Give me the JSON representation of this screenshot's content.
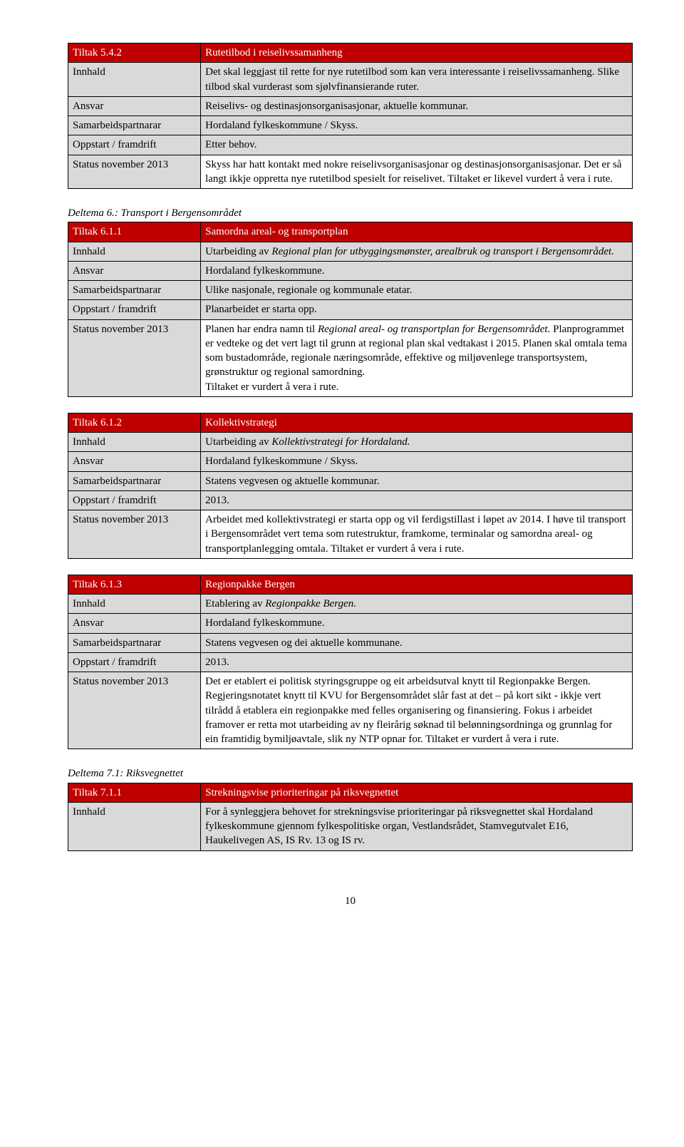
{
  "tables": [
    {
      "header": {
        "code": "Tiltak 5.4.2",
        "title": "Rutetilbod i reiselivssamanheng"
      },
      "rows": [
        {
          "label": "Innhald",
          "value": "Det skal leggjast til rette for nye rutetilbod som kan vera interessante i reiselivssamanheng. Slike tilbod skal vurderast som sjølvfinansierande ruter.",
          "status": false
        },
        {
          "label": "Ansvar",
          "value": "Reiselivs- og destinasjonsorganisasjonar, aktuelle kommunar.",
          "status": false
        },
        {
          "label": "Samarbeidspartnarar",
          "value": "Hordaland fylkeskommune / Skyss.",
          "status": false
        },
        {
          "label": "Oppstart / framdrift",
          "value": "Etter behov.",
          "status": false
        },
        {
          "label": "Status november 2013",
          "value": "Skyss har hatt kontakt med nokre reiselivsorganisasjonar og destinasjonsorganisasjonar. Det er så langt ikkje oppretta nye rutetilbod spesielt for reiselivet. Tiltaket er likevel vurdert å vera i rute.",
          "status": true
        }
      ]
    },
    {
      "sectionHeading": "Deltema 6.: Transport i Bergensområdet",
      "header": {
        "code": "Tiltak 6.1.1",
        "title": "Samordna areal- og transportplan"
      },
      "rows": [
        {
          "label": "Innhald",
          "value_html": "Utarbeiding av <em>Regional plan for utbyggingsmønster, arealbruk og transport i Bergensområdet.</em>",
          "status": false
        },
        {
          "label": "Ansvar",
          "value": "Hordaland fylkeskommune.",
          "status": false
        },
        {
          "label": "Samarbeidspartnarar",
          "value": "Ulike nasjonale, regionale og kommunale etatar.",
          "status": false
        },
        {
          "label": "Oppstart / framdrift",
          "value": "Planarbeidet er starta opp.",
          "status": false
        },
        {
          "label": "Status november 2013",
          "value_html": "Planen har endra namn til <em>Regional areal- og transportplan for Bergensområdet.</em> Planprogrammet er vedteke og det vert lagt til grunn at regional  plan skal vedtakast i 2015. Planen skal omtala tema som bustadområde, regionale næringsområde, effektive og miljøvenlege transportsystem, grønstruktur og regional samordning.<br>Tiltaket er vurdert å vera i rute.",
          "status": true
        }
      ]
    },
    {
      "header": {
        "code": "Tiltak 6.1.2",
        "title": "Kollektivstrategi"
      },
      "rows": [
        {
          "label": "Innhald",
          "value_html": "Utarbeiding av <em>Kollektivstrategi for Hordaland.</em>",
          "status": false
        },
        {
          "label": "Ansvar",
          "value": "Hordaland fylkeskommune / Skyss.",
          "status": false
        },
        {
          "label": "Samarbeidspartnarar",
          "value": "Statens vegvesen og aktuelle kommunar.",
          "status": false
        },
        {
          "label": "Oppstart / framdrift",
          "value": "2013.",
          "status": false
        },
        {
          "label": "Status november 2013",
          "value": "Arbeidet med kollektivstrategi er starta opp og vil ferdigstillast i løpet av 2014. I høve til transport i Bergensområdet vert tema som rutestruktur, framkome, terminalar og samordna areal- og transportplanlegging omtala. Tiltaket er vurdert å vera i rute.",
          "status": true
        }
      ]
    },
    {
      "header": {
        "code": "Tiltak 6.1.3",
        "title": "Regionpakke Bergen"
      },
      "rows": [
        {
          "label": "Innhald",
          "value_html": "Etablering av <em>Regionpakke Bergen.</em>",
          "status": false
        },
        {
          "label": "Ansvar",
          "value": "Hordaland fylkeskommune.",
          "status": false
        },
        {
          "label": "Samarbeidspartnarar",
          "value": "Statens vegvesen og dei aktuelle kommunane.",
          "status": false
        },
        {
          "label": "Oppstart / framdrift",
          "value": "2013.",
          "status": false
        },
        {
          "label": "Status november 2013",
          "value": "Det er etablert ei politisk styringsgruppe og eit arbeidsutval knytt til Regionpakke Bergen. Regjeringsnotatet knytt til KVU for Bergensområdet slår fast at det – på kort sikt - ikkje vert tilrådd å etablera ein regionpakke med felles organisering og finansiering. Fokus i arbeidet framover er retta mot utarbeiding av ny fleirårig søknad til belønningsordninga og grunnlag for ein framtidig bymiljøavtale, slik ny NTP opnar for. Tiltaket er vurdert å vera i rute.",
          "status": true
        }
      ]
    },
    {
      "sectionHeading": "Deltema 7.1: Riksvegnettet",
      "header": {
        "code": "Tiltak 7.1.1",
        "title": "Strekningsvise prioriteringar på riksvegnettet"
      },
      "rows": [
        {
          "label": "Innhald",
          "value": "For å synleggjera behovet for strekningsvise prioriteringar på riksvegnettet skal Hordaland fylkeskommune gjennom fylkespolitiske organ, Vestlandsrådet, Stamvegutvalet E16, Haukelivegen AS, IS Rv. 13 og IS rv.",
          "status": false
        }
      ]
    }
  ],
  "pageNumber": "10"
}
